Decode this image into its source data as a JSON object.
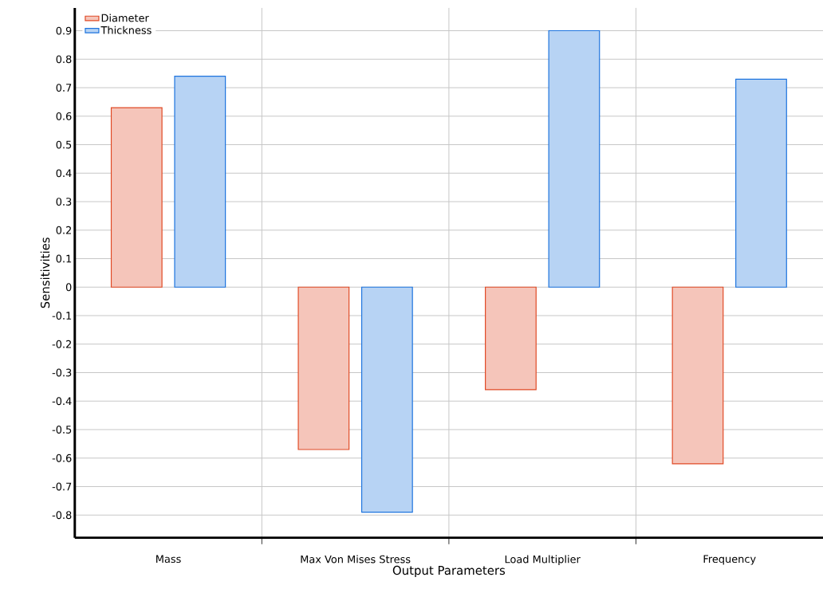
{
  "chart_data": {
    "type": "bar",
    "xlabel": "Output Parameters",
    "ylabel": "Sensitivities",
    "categories": [
      "Mass",
      "Max Von Mises Stress",
      "Load Multiplier",
      "Frequency"
    ],
    "series": [
      {
        "name": "Diameter",
        "color": "#e04a26",
        "values": [
          0.63,
          -0.57,
          -0.36,
          -0.62
        ]
      },
      {
        "name": "Thickness",
        "color": "#1e74de",
        "values": [
          0.74,
          -0.79,
          0.9,
          0.73
        ]
      }
    ],
    "ylim": [
      -0.88,
      0.98
    ],
    "yticks": [
      -0.8,
      -0.7,
      -0.6,
      -0.5,
      -0.4,
      -0.3,
      -0.2,
      -0.1,
      0,
      0.1,
      0.2,
      0.3,
      0.4,
      0.5,
      0.6,
      0.7,
      0.8,
      0.9
    ],
    "grid": true,
    "legend": "top left"
  }
}
